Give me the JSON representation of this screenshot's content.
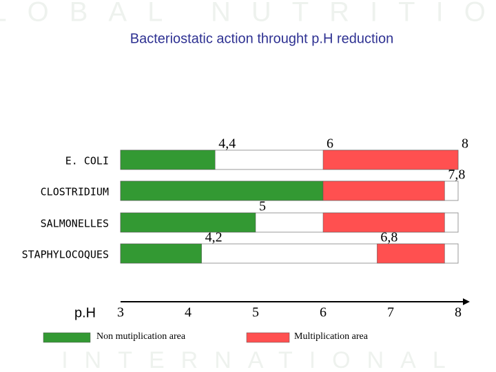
{
  "watermark": {
    "top": "GLOBAL NUTRITION",
    "bottom": "INTERNATIONAL"
  },
  "chart_data": {
    "type": "range-bar",
    "title": "Bacteriostatic action throught p.H reduction",
    "xlabel": "p.H",
    "categories": [
      "E. COLI",
      "CLOSTRIDIUM",
      "SALMONELLES",
      "STAPHYLOCOQUES"
    ],
    "xlim": [
      3,
      8
    ],
    "xticks": [
      3,
      4,
      5,
      6,
      7,
      8
    ],
    "series": [
      {
        "name": "Non mutiplication area",
        "color": "#339933",
        "values": [
          4.4,
          6,
          5,
          4.2
        ],
        "value_labels": [
          "4,4",
          null,
          "5",
          "4,2"
        ]
      },
      {
        "name": "Multiplication area",
        "color": "#ff5050",
        "start": [
          6,
          6,
          6,
          6.8
        ],
        "start_labels": [
          "6",
          null,
          null,
          "6,8"
        ],
        "values": [
          8,
          7.8,
          7.8,
          7.8
        ],
        "value_labels": [
          "8",
          "7,8",
          null,
          null
        ]
      }
    ]
  }
}
